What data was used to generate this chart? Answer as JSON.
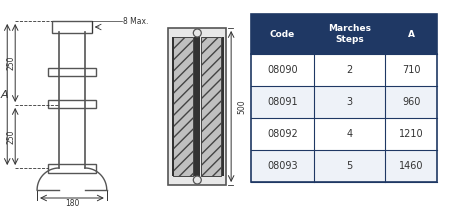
{
  "bg_color": "#ffffff",
  "table_header_color": "#1f3864",
  "table_header_text_color": "#ffffff",
  "table_row_colors": [
    "#ffffff",
    "#eef2f8",
    "#ffffff",
    "#eef2f8"
  ],
  "table_border_color": "#1f3864",
  "headers": [
    "Code",
    "Marches\nSteps",
    "A"
  ],
  "data_rows": [
    [
      "08090",
      "2",
      "710"
    ],
    [
      "08091",
      "3",
      "960"
    ],
    [
      "08092",
      "4",
      "1210"
    ],
    [
      "08093",
      "5",
      "1460"
    ]
  ],
  "dim_color": "#333333",
  "line_color": "#555555",
  "label_250_1": "250",
  "label_250_2": "250",
  "label_180": "180",
  "label_8max": "8 Max.",
  "label_500": "500",
  "label_A": "A"
}
